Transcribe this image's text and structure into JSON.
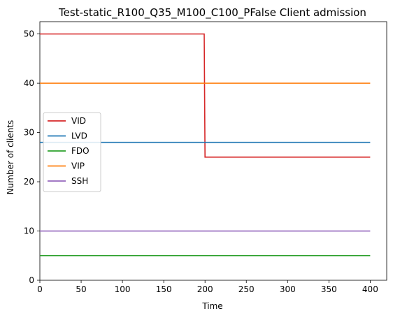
{
  "chart_data": {
    "type": "line",
    "title": "Test-static_R100_Q35_M100_C100_PFalse Client admission",
    "xlabel": "Time",
    "ylabel": "Number of clients",
    "xlim": [
      0,
      420
    ],
    "ylim": [
      0,
      52.5
    ],
    "xticks": [
      0,
      50,
      100,
      150,
      200,
      250,
      300,
      350,
      400
    ],
    "yticks": [
      0,
      10,
      20,
      30,
      40,
      50
    ],
    "grid": false,
    "legend_position": "center-left",
    "step": true,
    "series": [
      {
        "name": "VID",
        "color": "#d62728",
        "x": [
          0,
          199,
          200,
          400
        ],
        "y": [
          50,
          50,
          25,
          25
        ]
      },
      {
        "name": "LVD",
        "color": "#1f77b4",
        "x": [
          0,
          400
        ],
        "y": [
          28,
          28
        ]
      },
      {
        "name": "FDO",
        "color": "#2ca02c",
        "x": [
          0,
          400
        ],
        "y": [
          5,
          5
        ]
      },
      {
        "name": "VIP",
        "color": "#ff7f0e",
        "x": [
          0,
          400
        ],
        "y": [
          40,
          40
        ]
      },
      {
        "name": "SSH",
        "color": "#9467bd",
        "x": [
          0,
          400
        ],
        "y": [
          10,
          10
        ]
      }
    ]
  }
}
